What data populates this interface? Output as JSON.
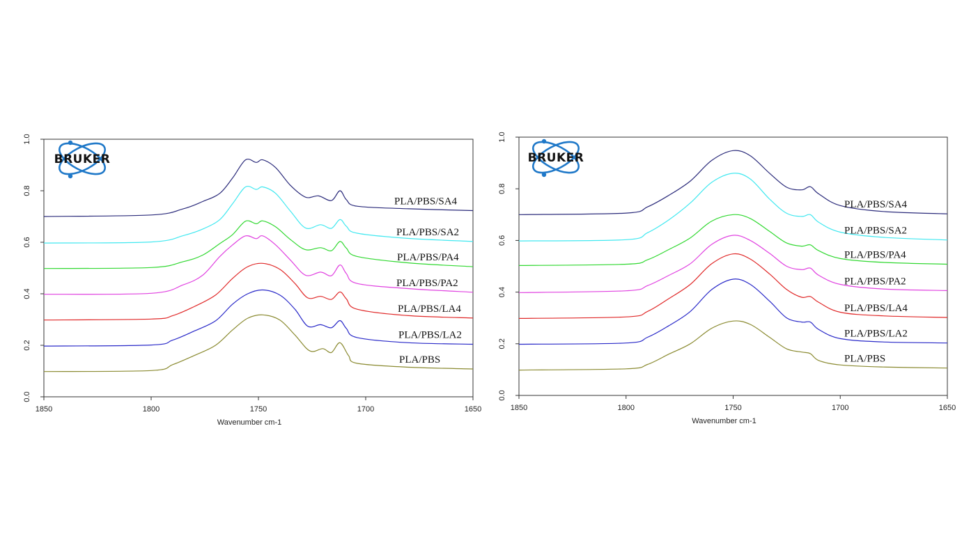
{
  "logo": {
    "text": "BRUKER",
    "color": "#1f78c8"
  },
  "chart_data": [
    {
      "type": "line",
      "xlabel": "Wavenumber cm-1",
      "ylabel": "",
      "xlim": [
        1850,
        1650
      ],
      "ylim": [
        0,
        1.0
      ],
      "x_reversed": true,
      "xticks": [
        "1850",
        "1800",
        "1750",
        "1700",
        "1650"
      ],
      "yticks": [
        "0.0",
        "0.2",
        "0.4",
        "0.6",
        "0.8",
        "1.0"
      ],
      "grid": false,
      "legend": "inline-labels-right",
      "series": [
        {
          "name": "PLA/PBS/SA4",
          "color": "#2a2a7a",
          "points": [
            [
              1850,
              0.7
            ],
            [
              1800,
              0.706
            ],
            [
              1785,
              0.73
            ],
            [
              1776,
              0.758
            ],
            [
              1768,
              0.79
            ],
            [
              1762,
              0.85
            ],
            [
              1756,
              0.92
            ],
            [
              1751,
              0.91
            ],
            [
              1748,
              0.92
            ],
            [
              1742,
              0.89
            ],
            [
              1735,
              0.82
            ],
            [
              1728,
              0.775
            ],
            [
              1722,
              0.78
            ],
            [
              1716,
              0.762
            ],
            [
              1712,
              0.8
            ],
            [
              1709,
              0.765
            ],
            [
              1704,
              0.74
            ],
            [
              1680,
              0.73
            ],
            [
              1650,
              0.723
            ]
          ]
        },
        {
          "name": "PLA/PBS/SA2",
          "color": "#40e8f0",
          "points": [
            [
              1850,
              0.597
            ],
            [
              1800,
              0.601
            ],
            [
              1785,
              0.626
            ],
            [
              1776,
              0.651
            ],
            [
              1768,
              0.688
            ],
            [
              1762,
              0.75
            ],
            [
              1756,
              0.815
            ],
            [
              1751,
              0.805
            ],
            [
              1748,
              0.815
            ],
            [
              1742,
              0.79
            ],
            [
              1735,
              0.72
            ],
            [
              1728,
              0.655
            ],
            [
              1721,
              0.668
            ],
            [
              1716,
              0.654
            ],
            [
              1712,
              0.688
            ],
            [
              1709,
              0.662
            ],
            [
              1704,
              0.635
            ],
            [
              1680,
              0.615
            ],
            [
              1650,
              0.603
            ]
          ]
        },
        {
          "name": "PLA/PBS/PA4",
          "color": "#30d830",
          "points": [
            [
              1850,
              0.498
            ],
            [
              1800,
              0.502
            ],
            [
              1785,
              0.525
            ],
            [
              1776,
              0.55
            ],
            [
              1768,
              0.595
            ],
            [
              1762,
              0.63
            ],
            [
              1756,
              0.682
            ],
            [
              1751,
              0.672
            ],
            [
              1748,
              0.683
            ],
            [
              1742,
              0.66
            ],
            [
              1735,
              0.61
            ],
            [
              1728,
              0.571
            ],
            [
              1721,
              0.579
            ],
            [
              1716,
              0.567
            ],
            [
              1712,
              0.603
            ],
            [
              1709,
              0.577
            ],
            [
              1704,
              0.545
            ],
            [
              1680,
              0.52
            ],
            [
              1650,
              0.505
            ]
          ]
        },
        {
          "name": "PLA/PBS/PA2",
          "color": "#e040e0",
          "points": [
            [
              1850,
              0.398
            ],
            [
              1800,
              0.402
            ],
            [
              1785,
              0.435
            ],
            [
              1776,
              0.472
            ],
            [
              1768,
              0.545
            ],
            [
              1762,
              0.59
            ],
            [
              1756,
              0.625
            ],
            [
              1751,
              0.614
            ],
            [
              1748,
              0.625
            ],
            [
              1742,
              0.59
            ],
            [
              1735,
              0.53
            ],
            [
              1728,
              0.472
            ],
            [
              1721,
              0.484
            ],
            [
              1716,
              0.47
            ],
            [
              1712,
              0.512
            ],
            [
              1709,
              0.478
            ],
            [
              1704,
              0.44
            ],
            [
              1680,
              0.42
            ],
            [
              1650,
              0.406
            ]
          ]
        },
        {
          "name": "PLA/PBS/LA4",
          "color": "#e02828",
          "points": [
            [
              1850,
              0.298
            ],
            [
              1800,
              0.302
            ],
            [
              1790,
              0.315
            ],
            [
              1780,
              0.35
            ],
            [
              1770,
              0.395
            ],
            [
              1762,
              0.46
            ],
            [
              1755,
              0.505
            ],
            [
              1748,
              0.518
            ],
            [
              1740,
              0.495
            ],
            [
              1733,
              0.44
            ],
            [
              1727,
              0.384
            ],
            [
              1721,
              0.39
            ],
            [
              1716,
              0.378
            ],
            [
              1712,
              0.407
            ],
            [
              1709,
              0.38
            ],
            [
              1704,
              0.34
            ],
            [
              1680,
              0.315
            ],
            [
              1650,
              0.306
            ]
          ]
        },
        {
          "name": "PLA/PBS/LA2",
          "color": "#2828c8",
          "points": [
            [
              1850,
              0.197
            ],
            [
              1800,
              0.201
            ],
            [
              1790,
              0.22
            ],
            [
              1780,
              0.255
            ],
            [
              1770,
              0.295
            ],
            [
              1762,
              0.36
            ],
            [
              1755,
              0.4
            ],
            [
              1748,
              0.415
            ],
            [
              1740,
              0.395
            ],
            [
              1733,
              0.34
            ],
            [
              1727,
              0.274
            ],
            [
              1721,
              0.28
            ],
            [
              1716,
              0.268
            ],
            [
              1712,
              0.296
            ],
            [
              1709,
              0.265
            ],
            [
              1704,
              0.23
            ],
            [
              1680,
              0.21
            ],
            [
              1650,
              0.204
            ]
          ]
        },
        {
          "name": "PLA/PBS",
          "color": "#8a8a30",
          "points": [
            [
              1850,
              0.098
            ],
            [
              1800,
              0.102
            ],
            [
              1790,
              0.125
            ],
            [
              1780,
              0.16
            ],
            [
              1770,
              0.2
            ],
            [
              1762,
              0.26
            ],
            [
              1755,
              0.305
            ],
            [
              1748,
              0.318
            ],
            [
              1740,
              0.298
            ],
            [
              1733,
              0.24
            ],
            [
              1726,
              0.178
            ],
            [
              1720,
              0.187
            ],
            [
              1716,
              0.172
            ],
            [
              1712,
              0.21
            ],
            [
              1708,
              0.16
            ],
            [
              1704,
              0.13
            ],
            [
              1680,
              0.115
            ],
            [
              1650,
              0.108
            ]
          ]
        }
      ]
    },
    {
      "type": "line",
      "xlabel": "Wavenumber cm-1",
      "ylabel": "",
      "xlim": [
        1850,
        1650
      ],
      "ylim": [
        0,
        1.0
      ],
      "x_reversed": true,
      "xticks": [
        "1850",
        "1800",
        "1750",
        "1700",
        "1650"
      ],
      "yticks": [
        "0.0",
        "0.2",
        "0.4",
        "0.6",
        "0.8",
        "1.0"
      ],
      "grid": false,
      "legend": "inline-labels-right",
      "series": [
        {
          "name": "PLA/PBS/SA4",
          "color": "#2a2a7a",
          "points": [
            [
              1850,
              0.7
            ],
            [
              1800,
              0.706
            ],
            [
              1790,
              0.73
            ],
            [
              1780,
              0.775
            ],
            [
              1770,
              0.83
            ],
            [
              1760,
              0.91
            ],
            [
              1750,
              0.948
            ],
            [
              1742,
              0.928
            ],
            [
              1733,
              0.86
            ],
            [
              1725,
              0.806
            ],
            [
              1718,
              0.796
            ],
            [
              1714,
              0.808
            ],
            [
              1710,
              0.78
            ],
            [
              1700,
              0.735
            ],
            [
              1680,
              0.712
            ],
            [
              1650,
              0.703
            ]
          ]
        },
        {
          "name": "PLA/PBS/SA2",
          "color": "#40e8f0",
          "points": [
            [
              1850,
              0.598
            ],
            [
              1800,
              0.603
            ],
            [
              1790,
              0.63
            ],
            [
              1780,
              0.68
            ],
            [
              1770,
              0.745
            ],
            [
              1760,
              0.825
            ],
            [
              1750,
              0.86
            ],
            [
              1742,
              0.838
            ],
            [
              1733,
              0.76
            ],
            [
              1725,
              0.705
            ],
            [
              1718,
              0.693
            ],
            [
              1714,
              0.7
            ],
            [
              1710,
              0.67
            ],
            [
              1700,
              0.632
            ],
            [
              1680,
              0.612
            ],
            [
              1650,
              0.602
            ]
          ]
        },
        {
          "name": "PLA/PBS/PA4",
          "color": "#30d830",
          "points": [
            [
              1850,
              0.503
            ],
            [
              1800,
              0.508
            ],
            [
              1790,
              0.525
            ],
            [
              1780,
              0.565
            ],
            [
              1770,
              0.61
            ],
            [
              1760,
              0.675
            ],
            [
              1750,
              0.7
            ],
            [
              1742,
              0.685
            ],
            [
              1733,
              0.635
            ],
            [
              1725,
              0.59
            ],
            [
              1718,
              0.578
            ],
            [
              1714,
              0.583
            ],
            [
              1710,
              0.56
            ],
            [
              1700,
              0.53
            ],
            [
              1680,
              0.515
            ],
            [
              1650,
              0.508
            ]
          ]
        },
        {
          "name": "PLA/PBS/PA2",
          "color": "#e040e0",
          "points": [
            [
              1850,
              0.398
            ],
            [
              1800,
              0.405
            ],
            [
              1790,
              0.425
            ],
            [
              1780,
              0.465
            ],
            [
              1770,
              0.51
            ],
            [
              1760,
              0.585
            ],
            [
              1750,
              0.62
            ],
            [
              1742,
              0.6
            ],
            [
              1733,
              0.55
            ],
            [
              1725,
              0.5
            ],
            [
              1718,
              0.487
            ],
            [
              1714,
              0.493
            ],
            [
              1710,
              0.465
            ],
            [
              1700,
              0.43
            ],
            [
              1680,
              0.412
            ],
            [
              1650,
              0.406
            ]
          ]
        },
        {
          "name": "PLA/PBS/LA4",
          "color": "#e02828",
          "points": [
            [
              1850,
              0.298
            ],
            [
              1800,
              0.304
            ],
            [
              1790,
              0.325
            ],
            [
              1780,
              0.375
            ],
            [
              1770,
              0.43
            ],
            [
              1760,
              0.51
            ],
            [
              1750,
              0.548
            ],
            [
              1742,
              0.528
            ],
            [
              1733,
              0.47
            ],
            [
              1725,
              0.41
            ],
            [
              1718,
              0.38
            ],
            [
              1714,
              0.383
            ],
            [
              1710,
              0.36
            ],
            [
              1700,
              0.322
            ],
            [
              1680,
              0.308
            ],
            [
              1650,
              0.302
            ]
          ]
        },
        {
          "name": "PLA/PBS/LA2",
          "color": "#2828c8",
          "points": [
            [
              1850,
              0.198
            ],
            [
              1800,
              0.203
            ],
            [
              1790,
              0.225
            ],
            [
              1780,
              0.27
            ],
            [
              1770,
              0.325
            ],
            [
              1760,
              0.41
            ],
            [
              1750,
              0.45
            ],
            [
              1742,
              0.43
            ],
            [
              1733,
              0.365
            ],
            [
              1725,
              0.3
            ],
            [
              1718,
              0.284
            ],
            [
              1714,
              0.284
            ],
            [
              1710,
              0.255
            ],
            [
              1700,
              0.22
            ],
            [
              1680,
              0.207
            ],
            [
              1650,
              0.203
            ]
          ]
        },
        {
          "name": "PLA/PBS",
          "color": "#8a8a30",
          "points": [
            [
              1850,
              0.098
            ],
            [
              1800,
              0.103
            ],
            [
              1790,
              0.12
            ],
            [
              1780,
              0.16
            ],
            [
              1770,
              0.2
            ],
            [
              1760,
              0.26
            ],
            [
              1750,
              0.288
            ],
            [
              1742,
              0.275
            ],
            [
              1733,
              0.225
            ],
            [
              1725,
              0.18
            ],
            [
              1718,
              0.168
            ],
            [
              1714,
              0.162
            ],
            [
              1710,
              0.135
            ],
            [
              1700,
              0.118
            ],
            [
              1680,
              0.11
            ],
            [
              1650,
              0.106
            ]
          ]
        }
      ]
    }
  ]
}
